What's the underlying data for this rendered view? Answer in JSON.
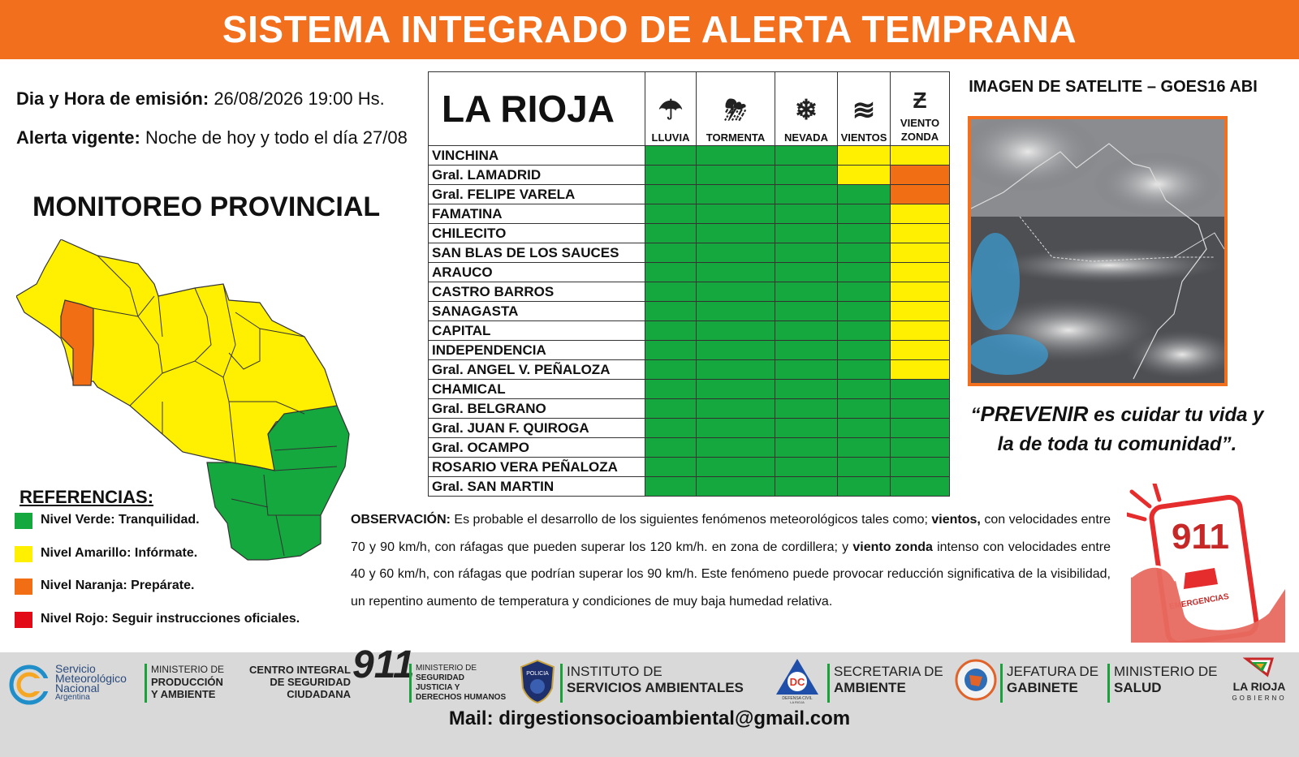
{
  "banner": {
    "title": "SISTEMA INTEGRADO DE ALERTA TEMPRANA"
  },
  "emission": {
    "date_label": "Dia y Hora de emisión:",
    "date_value": "26/08/2026  19:00 Hs.",
    "alert_label": "Alerta vigente:",
    "alert_value": "Noche de hoy y todo el día 27/08"
  },
  "monitor_title": "MONITOREO PROVINCIAL",
  "references": {
    "title": "REFERENCIAS",
    "colon": ":",
    "items": [
      {
        "label": "Nivel Verde: Tranquilidad.",
        "color": "#14a83e"
      },
      {
        "label": "Nivel Amarillo: Infórmate.",
        "color": "#ffef00"
      },
      {
        "label": "Nivel Naranja: Prepárate.",
        "color": "#f26e14"
      },
      {
        "label": "Nivel Rojo: Seguir instrucciones oficiales.",
        "color": "#e20a17"
      }
    ]
  },
  "table": {
    "province": "LA RIOJA",
    "columns": [
      {
        "label": "LLUVIA",
        "icon": "rain-cloud-icon"
      },
      {
        "label": "TORMENTA",
        "icon": "storm-cloud-icon"
      },
      {
        "label": "NEVADA",
        "icon": "snowflake-icon"
      },
      {
        "label": "VIENTOS",
        "icon": "wind-icon"
      },
      {
        "label": "VIENTO ZONDA",
        "icon": "zonda-icon"
      }
    ],
    "rows": [
      {
        "dept": "VINCHINA",
        "levels": [
          "green",
          "green",
          "green",
          "yellow",
          "yellow"
        ]
      },
      {
        "dept": "Gral. LAMADRID",
        "levels": [
          "green",
          "green",
          "green",
          "yellow",
          "orange"
        ]
      },
      {
        "dept": "Gral. FELIPE VARELA",
        "levels": [
          "green",
          "green",
          "green",
          "green",
          "orange"
        ]
      },
      {
        "dept": "FAMATINA",
        "levels": [
          "green",
          "green",
          "green",
          "green",
          "yellow"
        ]
      },
      {
        "dept": "CHILECITO",
        "levels": [
          "green",
          "green",
          "green",
          "green",
          "yellow"
        ]
      },
      {
        "dept": "SAN BLAS DE LOS SAUCES",
        "levels": [
          "green",
          "green",
          "green",
          "green",
          "yellow"
        ]
      },
      {
        "dept": "ARAUCO",
        "levels": [
          "green",
          "green",
          "green",
          "green",
          "yellow"
        ]
      },
      {
        "dept": "CASTRO BARROS",
        "levels": [
          "green",
          "green",
          "green",
          "green",
          "yellow"
        ]
      },
      {
        "dept": "SANAGASTA",
        "levels": [
          "green",
          "green",
          "green",
          "green",
          "yellow"
        ]
      },
      {
        "dept": "CAPITAL",
        "levels": [
          "green",
          "green",
          "green",
          "green",
          "yellow"
        ]
      },
      {
        "dept": "INDEPENDENCIA",
        "levels": [
          "green",
          "green",
          "green",
          "green",
          "yellow"
        ]
      },
      {
        "dept": "Gral. ANGEL V. PEÑALOZA",
        "levels": [
          "green",
          "green",
          "green",
          "green",
          "yellow"
        ]
      },
      {
        "dept": "CHAMICAL",
        "levels": [
          "green",
          "green",
          "green",
          "green",
          "green"
        ]
      },
      {
        "dept": "Gral. BELGRANO",
        "levels": [
          "green",
          "green",
          "green",
          "green",
          "green"
        ]
      },
      {
        "dept": "Gral. JUAN F. QUIROGA",
        "levels": [
          "green",
          "green",
          "green",
          "green",
          "green"
        ]
      },
      {
        "dept": "Gral. OCAMPO",
        "levels": [
          "green",
          "green",
          "green",
          "green",
          "green"
        ]
      },
      {
        "dept": "ROSARIO VERA PEÑALOZA",
        "levels": [
          "green",
          "green",
          "green",
          "green",
          "green"
        ]
      },
      {
        "dept": "Gral. SAN MARTIN",
        "levels": [
          "green",
          "green",
          "green",
          "green",
          "green"
        ]
      }
    ]
  },
  "satellite": {
    "title": "IMAGEN DE SATELITE – GOES16 ABI"
  },
  "motto": {
    "open": "“",
    "strong": "PREVENIR",
    "rest1": " es cuidar tu vida y",
    "line2": "la de toda tu comunidad”."
  },
  "observation": {
    "label": "OBSERVACIÓN:",
    "t1": " Es probable el desarrollo de los siguientes fenómenos meteorológicos tales como; ",
    "b1": "vientos,",
    "t2": " con velocidades entre 70 y 90 km/h, con ráfagas que pueden superar los 120 km/h. en zona de cordillera; y ",
    "b2": "viento zonda",
    "t3": " intenso con velocidades entre 40 y 60 km/h, con ráfagas que podrían superar los 90 km/h. Este fenómeno puede provocar reducción significativa de la visibilidad, un repentino aumento de temperatura y condiciones de muy baja humedad relativa."
  },
  "phone": {
    "number": "911",
    "text": "EMERGENCIAS"
  },
  "footer": {
    "smn": [
      "Servicio",
      "Meteorológico",
      "Nacional",
      "Argentina"
    ],
    "min_prod": [
      "MINISTERIO DE",
      "PRODUCCIÓN",
      "Y AMBIENTE"
    ],
    "centro": [
      "CENTRO INTEGRAL",
      "DE SEGURIDAD",
      "CIUDADANA"
    ],
    "centro_num": "911",
    "min_seg": [
      "MINISTERIO DE",
      "SEGURIDAD",
      "JUSTICIA Y",
      "DERECHOS HUMANOS"
    ],
    "policia": "POLICIA",
    "isa": [
      "INSTITUTO DE",
      "SERVICIOS AMBIENTALES"
    ],
    "dc": [
      "DC",
      "DEFENSA CIVIL",
      "LA RIOJA"
    ],
    "sec": [
      "SECRETARIA DE",
      "AMBIENTE"
    ],
    "jef": [
      "JEFATURA DE",
      "GABINETE"
    ],
    "sal": [
      "MINISTERIO DE",
      "SALUD"
    ],
    "gob": [
      "LA RIOJA",
      "GOBIERNO"
    ],
    "mail": "Mail: dirgestionsocioambiental@gmail.com"
  }
}
